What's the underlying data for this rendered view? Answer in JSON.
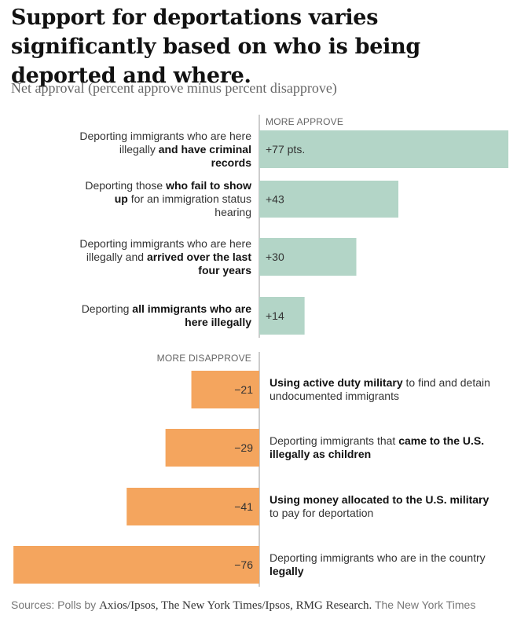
{
  "title": "Support for deportations varies significantly based on who is being deported and where.",
  "subtitle": "Net approval (percent approve minus percent disapprove)",
  "chart_data": {
    "type": "bar",
    "orientation": "horizontal",
    "value_label": "Net approval (percent approve minus percent disapprove)",
    "section_labels": {
      "approve": "MORE APPROVE",
      "disapprove": "MORE DISAPPROVE"
    },
    "colors": {
      "positive": "#b3d5c7",
      "negative": "#f4a55e",
      "axis": "#999999"
    },
    "xlim": [
      -76,
      77
    ],
    "bars": [
      {
        "value": 77,
        "value_label": "+77 pts.",
        "label_parts": [
          {
            "text": "Deporting immigrants who are here illegally ",
            "bold": false
          },
          {
            "text": "and have criminal records",
            "bold": true
          }
        ]
      },
      {
        "value": 43,
        "value_label": "+43",
        "label_parts": [
          {
            "text": "Deporting those ",
            "bold": false
          },
          {
            "text": "who fail to show up",
            "bold": true
          },
          {
            "text": " for an immigration status hearing",
            "bold": false
          }
        ]
      },
      {
        "value": 30,
        "value_label": "+30",
        "label_parts": [
          {
            "text": "Deporting immigrants who are here illegally and ",
            "bold": false
          },
          {
            "text": "arrived over the last four years",
            "bold": true
          }
        ]
      },
      {
        "value": 14,
        "value_label": "+14",
        "label_parts": [
          {
            "text": "Deporting ",
            "bold": false
          },
          {
            "text": "all immigrants who are here illegally",
            "bold": true
          }
        ]
      },
      {
        "value": -21,
        "value_label": "−21",
        "label_parts": [
          {
            "text": "Using active duty military",
            "bold": true
          },
          {
            "text": " to find and detain undocumented immigrants",
            "bold": false
          }
        ]
      },
      {
        "value": -29,
        "value_label": "−29",
        "label_parts": [
          {
            "text": "Deporting immigrants that ",
            "bold": false
          },
          {
            "text": "came to the U.S. illegally as children",
            "bold": true
          }
        ]
      },
      {
        "value": -41,
        "value_label": "−41",
        "label_parts": [
          {
            "text": "Using money allocated to the U.S. military",
            "bold": true
          },
          {
            "text": " to pay for deportation",
            "bold": false
          }
        ]
      },
      {
        "value": -76,
        "value_label": "−76",
        "label_parts": [
          {
            "text": "Deporting immigrants who are in the country ",
            "bold": false
          },
          {
            "text": "legally",
            "bold": true
          }
        ]
      }
    ]
  },
  "source": {
    "prefix": "Sources:  Polls by ",
    "polls": "Axios/Ipsos, The New York Times/Ipsos, RMG Research.",
    "credit": "  The New York Times"
  }
}
